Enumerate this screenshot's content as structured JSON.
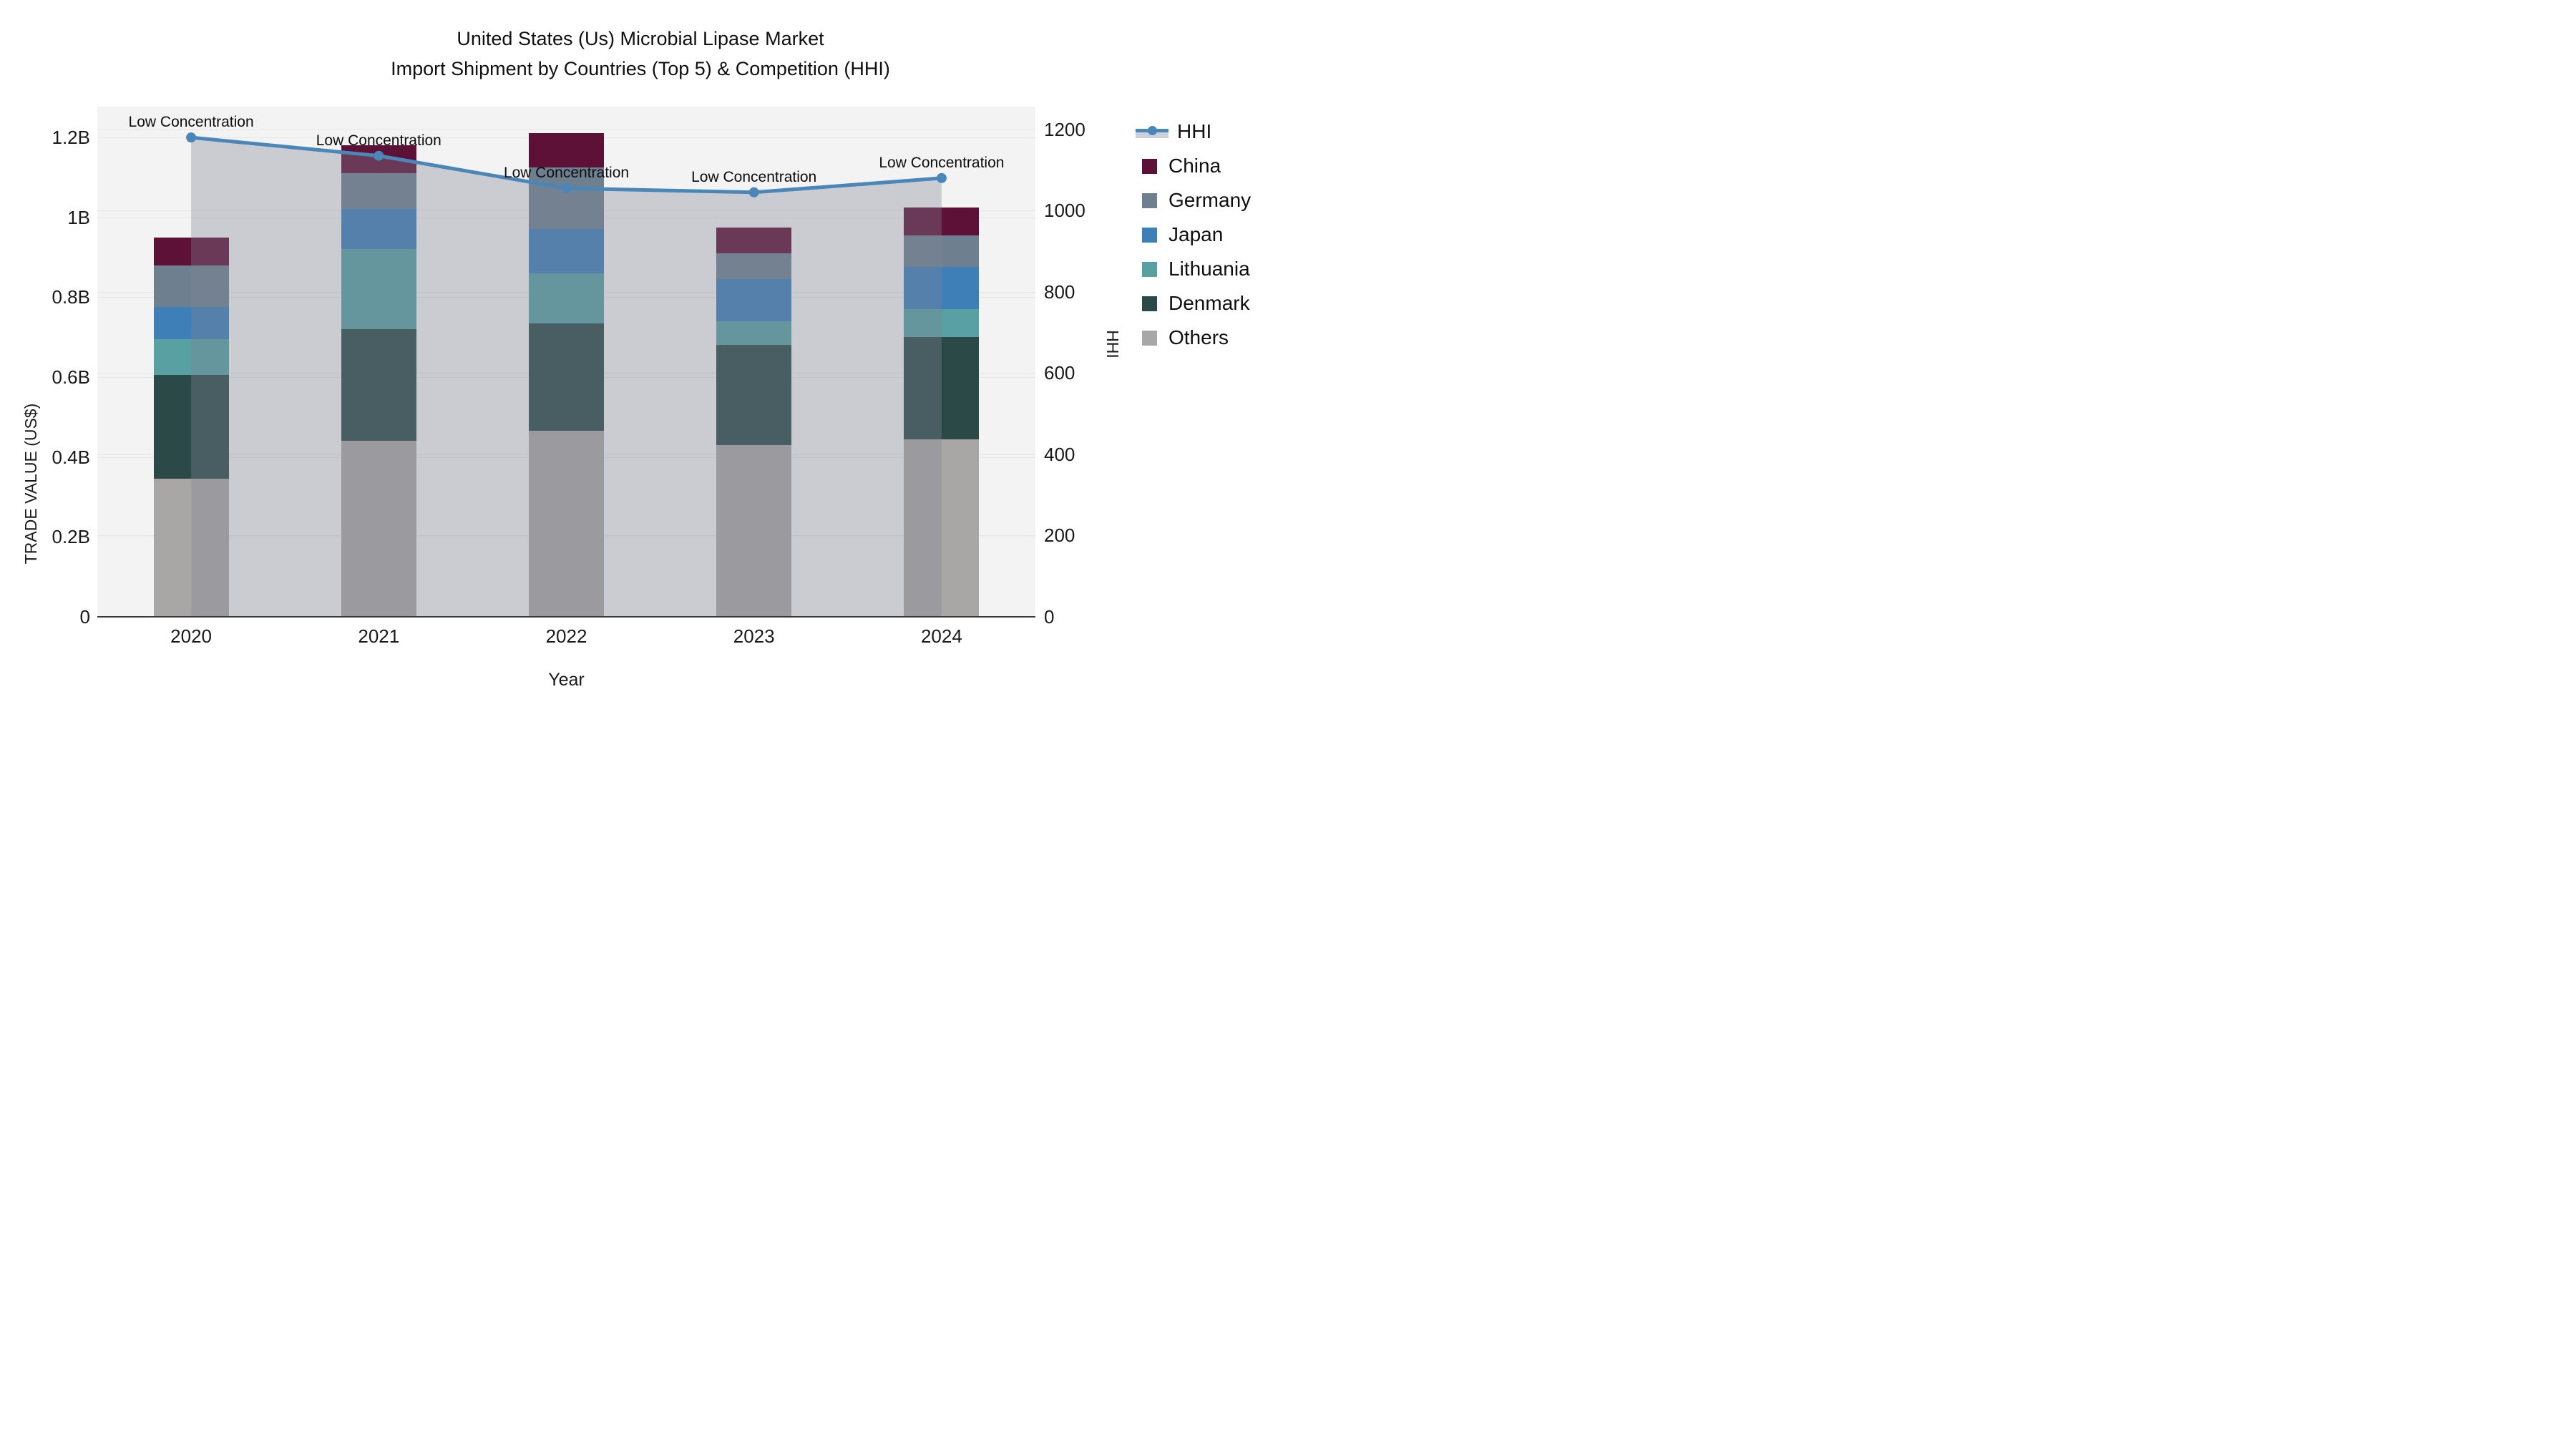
{
  "title": {
    "line1": "United States (Us) Microbial Lipase Market",
    "line2": "Import Shipment by Countries (Top 5) & Competition (HHI)"
  },
  "axes": {
    "left": {
      "title": "TRADE VALUE (US$)",
      "ticks": [
        {
          "label": "0",
          "value": 0
        },
        {
          "label": "0.2B",
          "value": 0.2
        },
        {
          "label": "0.4B",
          "value": 0.4
        },
        {
          "label": "0.6B",
          "value": 0.6
        },
        {
          "label": "0.8B",
          "value": 0.8
        },
        {
          "label": "1B",
          "value": 1.0
        },
        {
          "label": "1.2B",
          "value": 1.2
        }
      ],
      "range": [
        0,
        1.277
      ]
    },
    "right": {
      "title": "HHI",
      "ticks": [
        {
          "label": "0",
          "value": 0
        },
        {
          "label": "200",
          "value": 200
        },
        {
          "label": "400",
          "value": 400
        },
        {
          "label": "600",
          "value": 600
        },
        {
          "label": "800",
          "value": 800
        },
        {
          "label": "1000",
          "value": 1000
        },
        {
          "label": "1200",
          "value": 1200
        }
      ],
      "range": [
        0,
        1256
      ]
    },
    "x": {
      "title": "Year"
    }
  },
  "legend": {
    "items": [
      {
        "label": "HHI",
        "type": "line",
        "color": "#4a86b8"
      },
      {
        "label": "China",
        "type": "square",
        "color": "#5e1136"
      },
      {
        "label": "Germany",
        "type": "square",
        "color": "#6e8090"
      },
      {
        "label": "Japan",
        "type": "square",
        "color": "#3f7fb8"
      },
      {
        "label": "Lithuania",
        "type": "square",
        "color": "#58a0a2"
      },
      {
        "label": "Denmark",
        "type": "square",
        "color": "#2b4a47"
      },
      {
        "label": "Others",
        "type": "square",
        "color": "#a9a7a5"
      }
    ]
  },
  "chart_data": {
    "type": "bar+line",
    "title": "United States (Us) Microbial Lipase Market Import Shipment by Countries (Top 5) & Competition (HHI)",
    "categories": [
      "2020",
      "2021",
      "2022",
      "2023",
      "2024"
    ],
    "bar_unit": "billion US$",
    "stack_order": "bottom to top",
    "series": [
      {
        "name": "Others",
        "color": "#a9a7a5",
        "values": [
          0.345,
          0.44,
          0.465,
          0.43,
          0.445
        ]
      },
      {
        "name": "Denmark",
        "color": "#2b4a47",
        "values": [
          0.26,
          0.28,
          0.27,
          0.25,
          0.255
        ]
      },
      {
        "name": "Lithuania",
        "color": "#58a0a2",
        "values": [
          0.09,
          0.2,
          0.125,
          0.06,
          0.07
        ]
      },
      {
        "name": "Japan",
        "color": "#3f7fb8",
        "values": [
          0.08,
          0.1,
          0.11,
          0.105,
          0.105
        ]
      },
      {
        "name": "Germany",
        "color": "#6e8090",
        "values": [
          0.105,
          0.09,
          0.155,
          0.065,
          0.08
        ]
      },
      {
        "name": "China",
        "color": "#5e1136",
        "values": [
          0.07,
          0.07,
          0.085,
          0.065,
          0.07
        ]
      }
    ],
    "bar_totals": [
      0.95,
      1.18,
      1.21,
      0.975,
      1.025
    ],
    "line_series": {
      "name": "HHI",
      "axis": "right",
      "color": "#4a86b8",
      "area_fill": "rgba(126,132,149,0.35)",
      "values": [
        1180,
        1135,
        1055,
        1045,
        1080
      ]
    },
    "annotations": [
      {
        "text": "Low Concentration",
        "category": "2020"
      },
      {
        "text": "Low Concentration",
        "category": "2021"
      },
      {
        "text": "Low Concentration",
        "category": "2022"
      },
      {
        "text": "Low Concentration",
        "category": "2023"
      },
      {
        "text": "Low Concentration",
        "category": "2024"
      }
    ],
    "xlabel": "Year",
    "ylabel": "TRADE VALUE (US$)",
    "ylabel2": "HHI",
    "grid": true,
    "legend_position": "right",
    "plot_bg": "#f3f3f3"
  }
}
